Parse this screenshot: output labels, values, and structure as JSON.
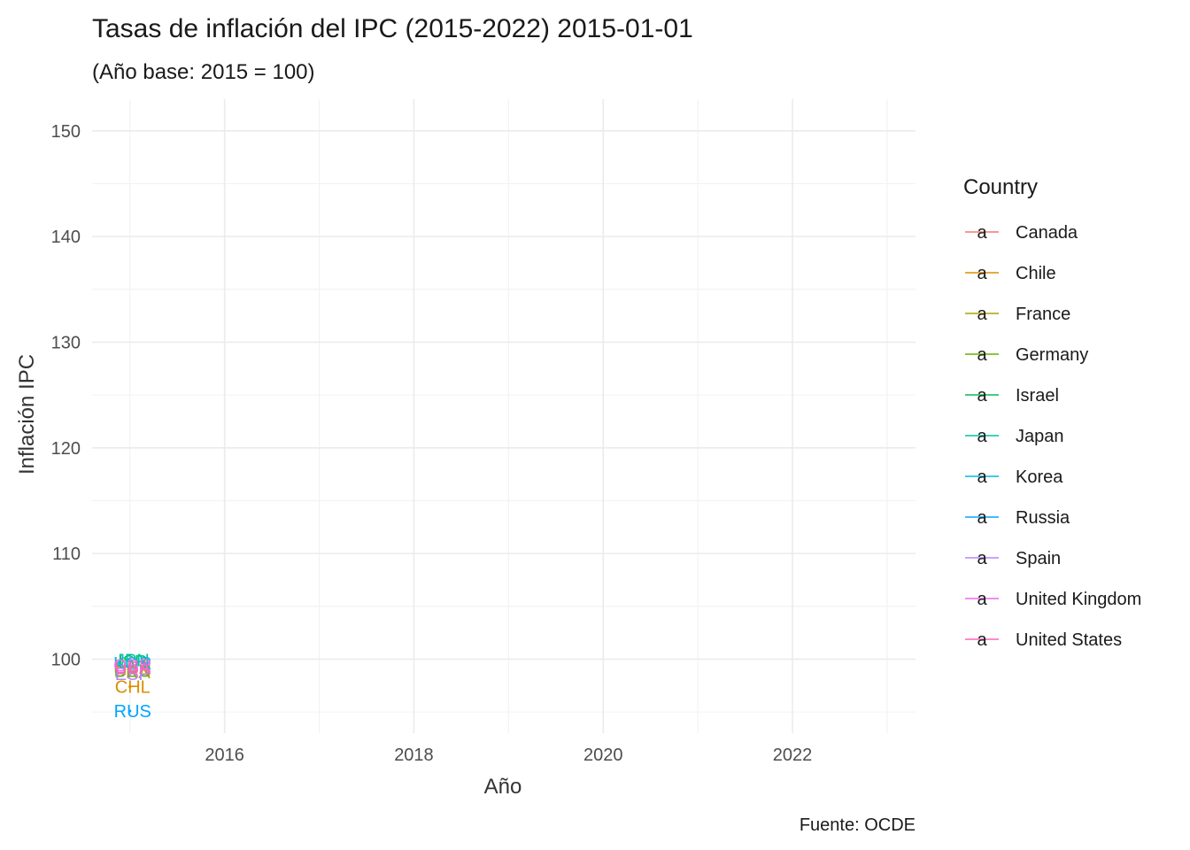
{
  "chart_data": {
    "type": "scatter",
    "title": "Tasas de inflación del IPC (2015-2022) 2015-01-01",
    "subtitle": "(Año base: 2015 = 100)",
    "xlabel": "Año",
    "ylabel": "Inflación IPC",
    "caption": "Fuente: OCDE",
    "xlim": [
      2014.6,
      2023.3
    ],
    "ylim": [
      93.0,
      153.0
    ],
    "x_ticks": [
      2016,
      2018,
      2020,
      2022
    ],
    "x_tick_labels": [
      "2016",
      "2018",
      "2020",
      "2022"
    ],
    "x_minor_ticks": [
      2015,
      2017,
      2019,
      2021,
      2023
    ],
    "y_ticks": [
      100,
      110,
      120,
      130,
      140,
      150
    ],
    "y_tick_labels": [
      "100",
      "110",
      "120",
      "130",
      "140",
      "150"
    ],
    "y_minor_ticks": [
      95,
      105,
      115,
      125,
      135,
      145
    ],
    "grid": true,
    "legend": {
      "title": "Country",
      "placement": "right",
      "glyph": "a"
    },
    "series": [
      {
        "name": "Canada",
        "code": "CAN",
        "color": "#F8766D",
        "x": 2015.0,
        "y": 98.9
      },
      {
        "name": "Chile",
        "code": "CHL",
        "color": "#DB8E00",
        "x": 2015.0,
        "y": 97.4
      },
      {
        "name": "France",
        "code": "FRA",
        "color": "#AEA200",
        "x": 2015.0,
        "y": 98.8
      },
      {
        "name": "Germany",
        "code": "DEU",
        "color": "#64B200",
        "x": 2015.0,
        "y": 98.9
      },
      {
        "name": "Israel",
        "code": "ISR",
        "color": "#00BD5C",
        "x": 2015.0,
        "y": 99.8
      },
      {
        "name": "Japan",
        "code": "JPN",
        "color": "#00C1A7",
        "x": 2015.0,
        "y": 99.9
      },
      {
        "name": "Korea",
        "code": "KOR",
        "color": "#00BADE",
        "x": 2015.0,
        "y": 99.6
      },
      {
        "name": "Russia",
        "code": "RUS",
        "color": "#00A6FF",
        "x": 2015.0,
        "y": 95.1
      },
      {
        "name": "Spain",
        "code": "ESP",
        "color": "#B385FF",
        "x": 2015.0,
        "y": 98.6
      },
      {
        "name": "United Kingdom",
        "code": "GBR",
        "color": "#EF67EB",
        "x": 2015.0,
        "y": 99.4
      },
      {
        "name": "United States",
        "code": "USA",
        "color": "#FF63B6",
        "x": 2015.0,
        "y": 99.2
      }
    ]
  }
}
